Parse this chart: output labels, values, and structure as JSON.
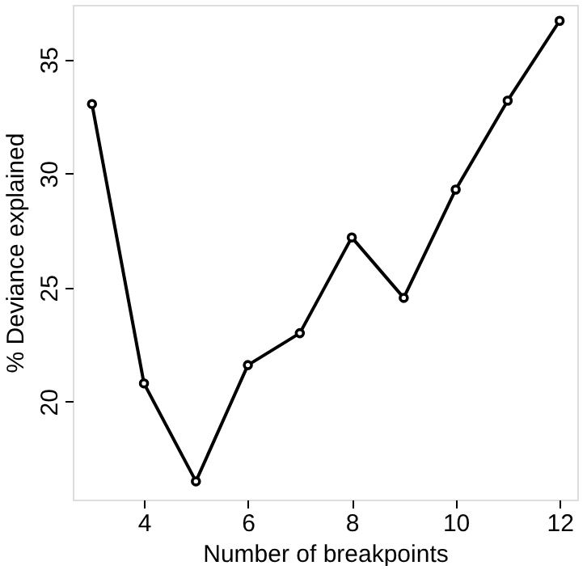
{
  "chart_data": {
    "type": "line",
    "xlabel": "Number of breakpoints",
    "ylabel": "% Deviance explained",
    "x": [
      3,
      4,
      5,
      6,
      7,
      8,
      9,
      10,
      11,
      12
    ],
    "series": [
      {
        "color": "#000000",
        "values": [
          33.05,
          20.8,
          16.5,
          21.6,
          23.0,
          27.2,
          24.55,
          29.3,
          33.2,
          36.7
        ]
      }
    ],
    "xlim": [
      2.63,
      12.34
    ],
    "ylim": [
      15.7,
      37.4
    ],
    "xticks": [
      4,
      6,
      8,
      10,
      12
    ],
    "yticks": [
      20,
      25,
      30,
      35
    ],
    "grid": false,
    "marker": "circle",
    "line_style": "solid"
  }
}
